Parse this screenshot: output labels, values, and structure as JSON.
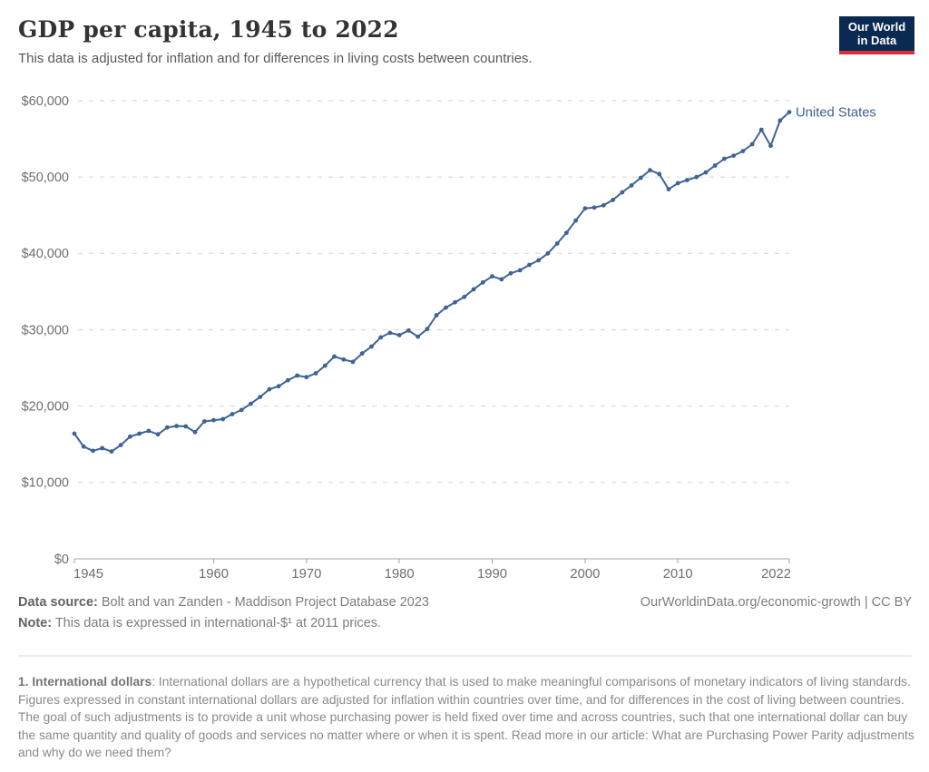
{
  "header": {
    "title": "GDP per capita, 1945 to 2022",
    "subtitle": "This data is adjusted for inflation and for differences in living costs between countries."
  },
  "logo": {
    "line1": "Our World",
    "line2": "in Data"
  },
  "colors": {
    "series_blue": "#3e6394",
    "logo_navy": "#0b2a52",
    "logo_red": "#dc2e37",
    "gridline": "#dadada",
    "axis": "#a3a3a3",
    "tick_label": "#6e6e6e"
  },
  "chart_data": {
    "type": "line",
    "title": "GDP per capita, 1945 to 2022",
    "xlabel": "",
    "ylabel": "",
    "ylim": [
      0,
      60000
    ],
    "ytick_values": [
      0,
      10000,
      20000,
      30000,
      40000,
      50000,
      60000
    ],
    "ytick_labels": [
      "$0",
      "$10,000",
      "$20,000",
      "$30,000",
      "$40,000",
      "$50,000",
      "$60,000"
    ],
    "xtick_values": [
      1945,
      1960,
      1970,
      1980,
      1990,
      2000,
      2010,
      2022
    ],
    "xtick_labels": [
      "1945",
      "1960",
      "1970",
      "1980",
      "1990",
      "2000",
      "2010",
      "2022"
    ],
    "grid": "dashed-horizontal",
    "legend_position": "end-of-line-label",
    "x": [
      1945,
      1946,
      1947,
      1948,
      1949,
      1950,
      1951,
      1952,
      1953,
      1954,
      1955,
      1956,
      1957,
      1958,
      1959,
      1960,
      1961,
      1962,
      1963,
      1964,
      1965,
      1966,
      1967,
      1968,
      1969,
      1970,
      1971,
      1972,
      1973,
      1974,
      1975,
      1976,
      1977,
      1978,
      1979,
      1980,
      1981,
      1982,
      1983,
      1984,
      1985,
      1986,
      1987,
      1988,
      1989,
      1990,
      1991,
      1992,
      1993,
      1994,
      1995,
      1996,
      1997,
      1998,
      1999,
      2000,
      2001,
      2002,
      2003,
      2004,
      2005,
      2006,
      2007,
      2008,
      2009,
      2010,
      2011,
      2012,
      2013,
      2014,
      2015,
      2016,
      2017,
      2018,
      2019,
      2020,
      2021,
      2022
    ],
    "series": [
      {
        "name": "United States",
        "values": [
          16400,
          14700,
          14150,
          14500,
          14050,
          14900,
          16000,
          16400,
          16750,
          16300,
          17200,
          17400,
          17350,
          16600,
          18000,
          18150,
          18300,
          18950,
          19500,
          20300,
          21200,
          22200,
          22600,
          23400,
          24000,
          23800,
          24300,
          25300,
          26500,
          26100,
          25800,
          26900,
          27800,
          29000,
          29600,
          29300,
          29900,
          29100,
          30100,
          31900,
          32900,
          33600,
          34300,
          35300,
          36200,
          37000,
          36600,
          37400,
          37800,
          38500,
          39100,
          40000,
          41300,
          42700,
          44300,
          45900,
          46000,
          46300,
          47000,
          48000,
          48900,
          49900,
          50900,
          50400,
          48400,
          49200,
          49600,
          50000,
          50600,
          51500,
          52400,
          52800,
          53400,
          54300,
          56200,
          54100,
          57400,
          58500
        ]
      }
    ]
  },
  "footer": {
    "datasource_label": "Data source:",
    "datasource_text": " Bolt and van Zanden - Maddison Project Database 2023",
    "note_label": "Note:",
    "note_text": " This data is expressed in international-$¹ at 2011 prices.",
    "link_text": "OurWorldinData.org/economic-growth | CC BY"
  },
  "footnote": {
    "label": "1. International dollars",
    "text": ": International dollars are a hypothetical currency that is used to make meaningful comparisons of monetary indicators of living standards. Figures expressed in constant international dollars are adjusted for inflation within countries over time, and for differences in the cost of living between countries. The goal of such adjustments is to provide a unit whose purchasing power is held fixed over time and across countries, such that one international dollar can buy the same quantity and quality of goods and services no matter where or when it is spent. Read more in our article: What are Purchasing Power Parity adjustments and why do we need them?"
  }
}
